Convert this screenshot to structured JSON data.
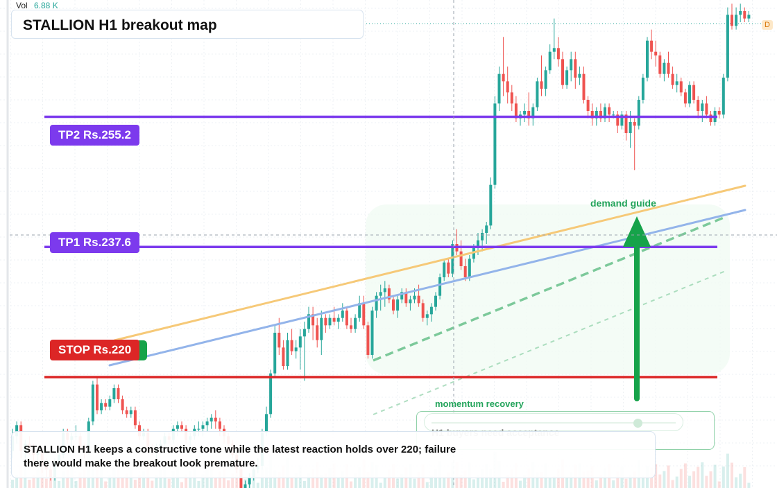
{
  "volume": {
    "label": "Vol",
    "value": "6.88 K"
  },
  "title": "STALLION H1 breakout map",
  "levels": {
    "tp2": "TP2 Rs.255.2",
    "tp1": "TP1 Rs.237.6",
    "stop": "STOP Rs.220"
  },
  "annotations": {
    "demand_guide": "demand guide",
    "momentum_recovery": "momentum recovery",
    "momentum_sub": "H1 buyers need acceptance",
    "d_badge": "D"
  },
  "note": "STALLION H1 keeps a constructive tone while the latest reaction holds over 220; failure there would make the breakout look premature.",
  "colors": {
    "up": "#26a69a",
    "down": "#ef5350",
    "target": "#7c3aed",
    "stop": "#dc2626",
    "arrow": "#16a34a",
    "trend_orange": "#f6c978",
    "trend_blue": "#93b4ea",
    "trend_green": "#7cc99a"
  },
  "chart_data": {
    "type": "candlestick",
    "ylim": [
      205,
      271
    ],
    "hlines": [
      {
        "name": "TP2",
        "value": 255.2
      },
      {
        "name": "TP1",
        "value": 237.6
      },
      {
        "name": "STOP",
        "value": 220
      }
    ],
    "candles": [
      [
        210,
        213,
        209,
        212
      ],
      [
        212,
        214,
        211,
        213.5
      ],
      [
        213.5,
        214,
        209,
        210
      ],
      [
        210,
        211.5,
        209,
        211
      ],
      [
        211,
        212,
        209.5,
        210
      ],
      [
        210,
        211,
        208.5,
        209.5
      ],
      [
        209.5,
        210.5,
        208,
        210
      ],
      [
        210,
        210.5,
        207,
        208
      ],
      [
        208,
        209,
        206.5,
        207.5
      ],
      [
        207.5,
        208,
        206,
        206.5
      ],
      [
        206.5,
        209,
        206,
        208.5
      ],
      [
        208.5,
        210,
        208,
        209.5
      ],
      [
        209.5,
        213,
        209,
        212.5
      ],
      [
        212.5,
        213,
        211,
        211.5
      ],
      [
        211.5,
        212.5,
        210,
        212
      ],
      [
        212,
        213.5,
        211.5,
        212
      ],
      [
        212,
        212.5,
        210,
        210.5
      ],
      [
        210.5,
        211,
        209,
        210
      ],
      [
        210,
        214.5,
        209.5,
        214
      ],
      [
        214,
        219.5,
        213.5,
        219
      ],
      [
        219,
        220,
        215,
        215.5
      ],
      [
        215.5,
        217,
        215,
        216.5
      ],
      [
        216.5,
        217,
        215.5,
        216
      ],
      [
        216,
        217.5,
        215.5,
        217
      ],
      [
        217,
        219,
        216.5,
        218.5
      ],
      [
        218.5,
        219,
        216.5,
        217
      ],
      [
        217,
        217.5,
        215,
        215.5
      ],
      [
        215.5,
        216,
        214.5,
        215
      ],
      [
        215,
        216,
        214.5,
        215.5
      ],
      [
        215.5,
        216,
        213,
        213.5
      ],
      [
        213.5,
        214,
        211.5,
        212
      ],
      [
        212,
        213,
        211.5,
        212.5
      ],
      [
        212.5,
        213,
        210,
        210.5
      ],
      [
        210.5,
        211,
        209.5,
        210
      ],
      [
        210,
        211,
        209,
        210.5
      ],
      [
        210.5,
        211.5,
        210,
        211
      ],
      [
        211,
        212.5,
        210.5,
        212
      ],
      [
        212,
        212.5,
        211,
        211.5
      ],
      [
        211.5,
        213.5,
        211,
        213
      ],
      [
        213,
        214,
        212,
        213.5
      ],
      [
        213.5,
        214,
        212.5,
        213
      ],
      [
        213,
        213.5,
        211,
        211.5
      ],
      [
        211.5,
        212.5,
        210,
        212
      ],
      [
        212,
        213.5,
        211.5,
        213
      ],
      [
        213,
        214,
        212,
        213
      ],
      [
        213,
        214,
        212,
        213.5
      ],
      [
        213.5,
        214.5,
        212.5,
        214
      ],
      [
        214,
        215,
        213,
        214.5
      ],
      [
        214.5,
        215.5,
        213,
        214
      ],
      [
        214,
        214.5,
        212,
        213
      ],
      [
        213,
        213.5,
        211,
        212
      ],
      [
        212,
        212.5,
        210,
        211
      ],
      [
        211,
        211.5,
        209,
        209.5
      ],
      [
        209.5,
        210,
        207,
        207.5
      ],
      [
        207.5,
        208,
        204,
        205
      ],
      [
        205,
        206,
        204,
        205.5
      ],
      [
        205.5,
        207,
        205,
        206.5
      ],
      [
        206.5,
        208,
        206,
        207.5
      ],
      [
        207.5,
        209,
        207,
        208
      ],
      [
        208,
        213,
        207.5,
        212.5
      ],
      [
        212.5,
        216,
        212,
        215
      ],
      [
        215,
        221,
        214.5,
        220.5
      ],
      [
        220.5,
        227,
        220,
        226
      ],
      [
        226,
        228,
        223,
        224
      ],
      [
        224,
        225,
        221,
        221.5
      ],
      [
        221.5,
        226,
        221,
        225
      ],
      [
        225,
        226.5,
        223,
        223.5
      ],
      [
        223.5,
        225,
        222.5,
        224
      ],
      [
        224,
        226.5,
        221,
        225.5
      ],
      [
        225.5,
        227.5,
        219.5,
        226.5
      ],
      [
        226.5,
        229.5,
        226,
        228.5
      ],
      [
        228.5,
        229.5,
        225,
        227
      ],
      [
        227,
        228,
        224,
        225
      ],
      [
        225,
        229,
        223,
        228
      ],
      [
        228,
        228.5,
        226,
        227
      ],
      [
        227,
        228.5,
        226.5,
        228
      ],
      [
        228,
        229.5,
        227,
        227.5
      ],
      [
        227.5,
        228.5,
        226.5,
        228
      ],
      [
        228,
        230,
        227.5,
        229
      ],
      [
        229,
        229.5,
        226.5,
        227
      ],
      [
        227,
        228,
        226,
        226.5
      ],
      [
        226.5,
        228.5,
        226,
        228
      ],
      [
        228,
        231,
        227.5,
        230
      ],
      [
        230,
        231,
        226.5,
        227
      ],
      [
        227,
        227.5,
        222.5,
        223
      ],
      [
        223,
        229.5,
        222.5,
        229
      ],
      [
        229,
        231.5,
        228,
        231
      ],
      [
        231,
        232.5,
        229,
        231.5
      ],
      [
        231.5,
        233,
        229.5,
        232
      ],
      [
        232,
        232.5,
        230,
        230.5
      ],
      [
        230.5,
        231,
        228.5,
        229
      ],
      [
        229,
        231,
        228,
        230.5
      ],
      [
        230.5,
        232,
        230,
        231.5
      ],
      [
        231.5,
        232,
        229.5,
        230
      ],
      [
        230,
        231,
        229,
        230.5
      ],
      [
        230.5,
        232,
        230,
        231
      ],
      [
        231,
        232.5,
        229.5,
        230
      ],
      [
        230,
        230.5,
        227.5,
        228
      ],
      [
        228,
        229,
        227,
        228.5
      ],
      [
        228.5,
        230,
        227.5,
        229.5
      ],
      [
        229.5,
        231.5,
        229,
        231
      ],
      [
        231,
        234,
        230.5,
        233.5
      ],
      [
        233.5,
        236,
        233,
        235.5
      ],
      [
        235.5,
        236,
        233.5,
        234
      ],
      [
        234,
        238.5,
        233.5,
        238
      ],
      [
        238,
        240,
        236.5,
        237
      ],
      [
        237,
        238.5,
        234.5,
        235
      ],
      [
        235,
        236,
        233,
        233.5
      ],
      [
        233.5,
        236.5,
        233,
        236
      ],
      [
        236,
        238,
        235.5,
        237.5
      ],
      [
        237.5,
        239.5,
        236.5,
        238.5
      ],
      [
        238.5,
        240,
        237,
        239.5
      ],
      [
        239.5,
        241,
        238,
        240.5
      ],
      [
        240.5,
        247,
        240,
        246
      ],
      [
        246,
        258,
        245.5,
        257
      ],
      [
        257,
        262,
        256,
        261
      ],
      [
        261,
        266,
        258,
        260
      ],
      [
        260,
        262,
        257,
        258.5
      ],
      [
        258.5,
        259.5,
        256,
        257
      ],
      [
        257,
        258,
        254.5,
        255
      ],
      [
        255,
        256,
        254,
        255.5
      ],
      [
        255.5,
        257,
        254.5,
        256
      ],
      [
        256,
        258.5,
        254,
        255
      ],
      [
        255,
        257,
        254,
        256.5
      ],
      [
        256.5,
        260.5,
        256,
        260
      ],
      [
        260,
        263.5,
        258,
        259
      ],
      [
        259,
        262,
        258,
        261.5
      ],
      [
        261.5,
        265,
        261,
        264
      ],
      [
        264,
        268.5,
        263,
        264.5
      ],
      [
        264.5,
        266,
        262,
        263
      ],
      [
        263,
        264,
        259,
        259.5
      ],
      [
        259.5,
        262,
        259,
        261.5
      ],
      [
        261.5,
        264,
        260,
        263
      ],
      [
        263,
        264,
        259,
        260.5
      ],
      [
        260.5,
        262,
        259.5,
        261
      ],
      [
        261,
        262,
        257,
        257.5
      ],
      [
        257.5,
        258,
        255,
        256
      ],
      [
        256,
        257,
        254,
        255
      ],
      [
        255,
        256.5,
        254,
        256
      ],
      [
        256,
        257,
        254.5,
        255
      ],
      [
        255,
        257,
        254.5,
        256.5
      ],
      [
        256.5,
        257,
        254.5,
        255.5
      ],
      [
        255.5,
        256,
        255,
        255.5
      ],
      [
        255.5,
        256,
        253,
        254
      ],
      [
        254,
        256,
        253.5,
        255.5
      ],
      [
        255.5,
        256,
        252,
        253
      ],
      [
        253,
        256,
        251,
        254.5
      ],
      [
        254.5,
        255,
        248,
        254
      ],
      [
        254,
        258,
        253.5,
        257.5
      ],
      [
        257.5,
        261,
        257,
        260.5
      ],
      [
        260.5,
        266,
        260,
        265.5
      ],
      [
        265.5,
        267,
        263,
        264
      ],
      [
        264,
        265.5,
        262,
        263.5
      ],
      [
        263.5,
        264,
        260.5,
        261
      ],
      [
        261,
        263,
        260,
        262.5
      ],
      [
        262.5,
        264,
        260.5,
        261
      ],
      [
        261,
        262,
        259,
        259.5
      ],
      [
        259.5,
        261,
        258.5,
        260
      ],
      [
        260,
        260.5,
        258,
        258.5
      ],
      [
        258.5,
        259,
        256.5,
        257
      ],
      [
        257,
        260,
        256.5,
        259.5
      ],
      [
        259.5,
        260,
        257,
        257.5
      ],
      [
        257.5,
        258,
        255,
        256
      ],
      [
        256,
        257.5,
        254.5,
        257
      ],
      [
        257,
        258,
        255,
        255.5
      ],
      [
        255.5,
        256,
        254,
        254.5
      ],
      [
        254.5,
        256.5,
        254,
        256
      ],
      [
        256,
        256.5,
        255,
        255.5
      ],
      [
        255.5,
        261,
        255,
        260.5
      ],
      [
        260.5,
        270,
        260,
        269
      ],
      [
        269,
        270.5,
        267,
        267.5
      ],
      [
        267.5,
        270,
        267,
        269
      ],
      [
        269,
        270.5,
        268,
        269.5
      ],
      [
        269.5,
        270,
        268,
        268.5
      ],
      [
        268.5,
        269.5,
        268,
        269
      ]
    ]
  }
}
